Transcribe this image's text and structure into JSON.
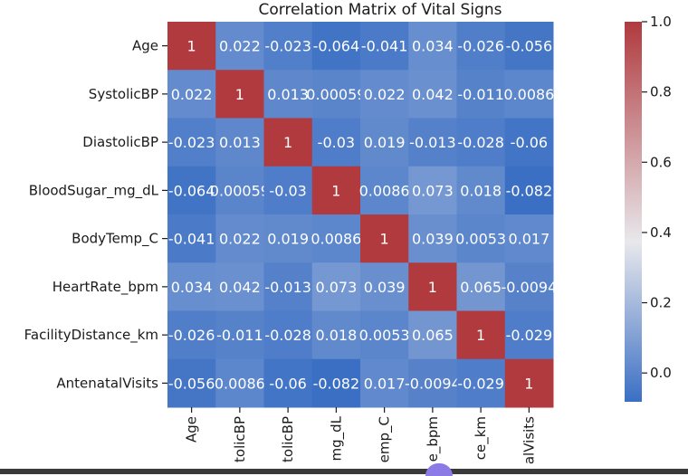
{
  "chart_data": {
    "type": "heatmap",
    "title": "Correlation Matrix of Vital Signs",
    "row_labels": [
      "Age",
      "SystolicBP",
      "DiastolicBP",
      "BloodSugar_mg_dL",
      "BodyTemp_C",
      "HeartRate_bpm",
      "FacilityDistance_km",
      "AntenatalVisits"
    ],
    "col_labels_visible": [
      "Age",
      "tolicBP",
      "tolicBP",
      "mg_dL",
      "emp_C",
      "e_bpm",
      "ce_km",
      "alVisits"
    ],
    "cell_text": [
      [
        "1",
        "0.022",
        "-0.023",
        "-0.064",
        "-0.041",
        "0.034",
        "-0.026",
        "-0.056"
      ],
      [
        "0.022",
        "1",
        "0.013",
        "0.00059",
        "0.022",
        "0.042",
        "-0.011",
        "0.0086"
      ],
      [
        "-0.023",
        "0.013",
        "1",
        "-0.03",
        "0.019",
        "-0.013",
        "-0.028",
        "-0.06"
      ],
      [
        "-0.064",
        "0.00059",
        "-0.03",
        "1",
        "0.0086",
        "0.073",
        "0.018",
        "-0.082"
      ],
      [
        "-0.041",
        "0.022",
        "0.019",
        "0.0086",
        "1",
        "0.039",
        "0.0053",
        "0.017"
      ],
      [
        "0.034",
        "0.042",
        "-0.013",
        "0.073",
        "0.039",
        "1",
        "0.065",
        "-0.0094"
      ],
      [
        "-0.026",
        "-0.011",
        "-0.028",
        "0.018",
        "0.0053",
        "0.065",
        "1",
        "-0.029"
      ],
      [
        "-0.056",
        "0.0086",
        "-0.06",
        "-0.082",
        "0.017",
        "-0.0094",
        "-0.029",
        "1"
      ]
    ],
    "values": [
      [
        1,
        0.022,
        -0.023,
        -0.064,
        -0.041,
        0.034,
        -0.026,
        -0.056
      ],
      [
        0.022,
        1,
        0.013,
        0.00059,
        0.022,
        0.042,
        -0.011,
        0.0086
      ],
      [
        -0.023,
        0.013,
        1,
        -0.03,
        0.019,
        -0.013,
        -0.028,
        -0.06
      ],
      [
        -0.064,
        0.00059,
        -0.03,
        1,
        0.0086,
        0.073,
        0.018,
        -0.082
      ],
      [
        -0.041,
        0.022,
        0.019,
        0.0086,
        1,
        0.039,
        0.0053,
        0.017
      ],
      [
        0.034,
        0.042,
        -0.013,
        0.073,
        0.039,
        1,
        0.065,
        -0.0094
      ],
      [
        -0.026,
        -0.011,
        -0.028,
        0.018,
        0.0053,
        0.065,
        1,
        -0.029
      ],
      [
        -0.056,
        0.0086,
        -0.06,
        -0.082,
        0.017,
        -0.0094,
        -0.029,
        1
      ]
    ],
    "colorbar": {
      "vmin": -0.082,
      "vmax": 1,
      "ticks": [
        "0.0",
        "0.2",
        "0.4",
        "0.6",
        "0.8",
        "1.0"
      ],
      "tick_values": [
        0,
        0.2,
        0.4,
        0.6,
        0.8,
        1.0
      ],
      "colormap": "blue-white-red",
      "colors": {
        "low": "#3b6fc4",
        "mid": "#e8e8ec",
        "high": "#b03a3e"
      }
    }
  }
}
